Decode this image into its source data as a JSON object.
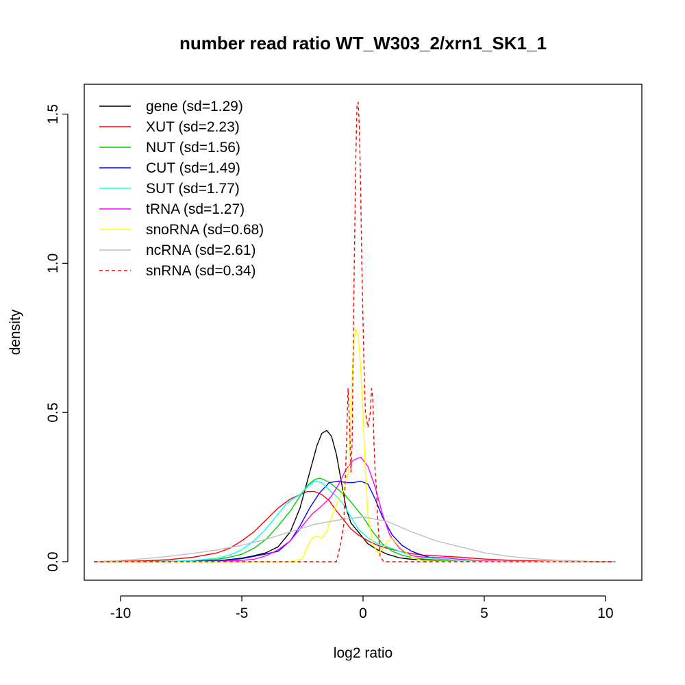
{
  "chart_data": {
    "type": "line",
    "title": "number read ratio WT_W303_2/xrn1_SK1_1",
    "xlabel": "log2 ratio",
    "ylabel": "density",
    "xlim": [
      -11.5,
      11.5
    ],
    "ylim": [
      -0.062,
      1.6
    ],
    "x_ticks": [
      -10,
      -5,
      0,
      5,
      10
    ],
    "x_tick_labels": [
      "-10",
      "-5",
      "0",
      "5",
      "10"
    ],
    "y_ticks": [
      0.0,
      0.5,
      1.0,
      1.5
    ],
    "y_tick_labels": [
      "0.0",
      "0.5",
      "1.0",
      "1.5"
    ],
    "grid": false,
    "legend_position": "top-left",
    "series": [
      {
        "name": "gene (sd=1.29)",
        "color": "#000000",
        "dashed": false,
        "x": [
          -11.1,
          -8,
          -6,
          -5,
          -4.5,
          -4,
          -3.5,
          -3,
          -2.6,
          -2.3,
          -2.1,
          -1.9,
          -1.7,
          -1.5,
          -1.3,
          -1.1,
          -0.9,
          -0.7,
          -0.5,
          -0.3,
          -0.1,
          0.2,
          0.6,
          1,
          1.5,
          2,
          3,
          4,
          6,
          8,
          10.4
        ],
        "y": [
          0,
          0.001,
          0.003,
          0.012,
          0.02,
          0.03,
          0.05,
          0.1,
          0.18,
          0.27,
          0.33,
          0.39,
          0.43,
          0.44,
          0.42,
          0.36,
          0.27,
          0.18,
          0.13,
          0.11,
          0.09,
          0.06,
          0.04,
          0.025,
          0.013,
          0.008,
          0.005,
          0.003,
          0.001,
          0.0005,
          0
        ]
      },
      {
        "name": "XUT (sd=2.23)",
        "color": "#ff0000",
        "dashed": false,
        "x": [
          -11.1,
          -9,
          -8,
          -7,
          -6,
          -5.5,
          -5,
          -4.5,
          -4,
          -3.5,
          -3,
          -2.6,
          -2.3,
          -2,
          -1.7,
          -1.4,
          -1.1,
          -0.8,
          -0.5,
          -0.2,
          0.2,
          0.6,
          1,
          1.5,
          2,
          2.5,
          3,
          4,
          5,
          6,
          7,
          8,
          10.4
        ],
        "y": [
          0,
          0.003,
          0.007,
          0.015,
          0.03,
          0.045,
          0.07,
          0.1,
          0.14,
          0.18,
          0.21,
          0.225,
          0.235,
          0.235,
          0.225,
          0.205,
          0.17,
          0.14,
          0.11,
          0.09,
          0.07,
          0.055,
          0.045,
          0.035,
          0.027,
          0.022,
          0.02,
          0.015,
          0.009,
          0.005,
          0.003,
          0.001,
          0
        ]
      },
      {
        "name": "NUT (sd=1.56)",
        "color": "#00cd00",
        "dashed": false,
        "x": [
          -11.1,
          -7,
          -6,
          -5.5,
          -5,
          -4.5,
          -4,
          -3.5,
          -3,
          -2.6,
          -2.3,
          -2,
          -1.8,
          -1.6,
          -1.3,
          -1,
          -0.7,
          -0.4,
          0,
          0.4,
          0.8,
          1.2,
          1.6,
          2,
          2.5,
          3,
          4,
          6,
          10.4
        ],
        "y": [
          0,
          0.002,
          0.008,
          0.015,
          0.025,
          0.045,
          0.075,
          0.12,
          0.17,
          0.22,
          0.255,
          0.275,
          0.28,
          0.275,
          0.26,
          0.24,
          0.22,
          0.19,
          0.15,
          0.1,
          0.06,
          0.035,
          0.022,
          0.014,
          0.009,
          0.006,
          0.003,
          0.001,
          0
        ]
      },
      {
        "name": "CUT (sd=1.49)",
        "color": "#0000ff",
        "dashed": false,
        "x": [
          -11.1,
          -6,
          -5,
          -4.5,
          -4,
          -3.5,
          -3,
          -2.6,
          -2.2,
          -1.8,
          -1.4,
          -1,
          -0.7,
          -0.4,
          -0.1,
          0.2,
          0.5,
          0.8,
          1.2,
          1.6,
          2,
          2.5,
          3,
          4,
          6,
          10.4
        ],
        "y": [
          0,
          0.002,
          0.01,
          0.018,
          0.026,
          0.035,
          0.07,
          0.12,
          0.18,
          0.23,
          0.265,
          0.27,
          0.265,
          0.265,
          0.27,
          0.26,
          0.21,
          0.15,
          0.09,
          0.055,
          0.035,
          0.02,
          0.01,
          0.003,
          0.001,
          0
        ]
      },
      {
        "name": "SUT (sd=1.77)",
        "color": "#00ffff",
        "dashed": false,
        "x": [
          -11.1,
          -8,
          -7,
          -6,
          -5.5,
          -5,
          -4.5,
          -4,
          -3.5,
          -3.2,
          -2.9,
          -2.6,
          -2.3,
          -2,
          -1.7,
          -1.4,
          -1.1,
          -0.8,
          -0.5,
          -0.2,
          0.2,
          0.6,
          1,
          1.5,
          2,
          3,
          4,
          6,
          10.4
        ],
        "y": [
          0,
          0.001,
          0.004,
          0.012,
          0.022,
          0.04,
          0.07,
          0.11,
          0.16,
          0.19,
          0.21,
          0.225,
          0.25,
          0.27,
          0.265,
          0.24,
          0.22,
          0.19,
          0.15,
          0.11,
          0.08,
          0.06,
          0.05,
          0.035,
          0.02,
          0.01,
          0.004,
          0.001,
          0
        ]
      },
      {
        "name": "tRNA (sd=1.27)",
        "color": "#ff00ff",
        "dashed": false,
        "x": [
          -11.1,
          -6,
          -5,
          -4.5,
          -4,
          -3.5,
          -3,
          -2.7,
          -2.4,
          -2.1,
          -1.8,
          -1.6,
          -1.3,
          -1,
          -0.7,
          -0.4,
          -0.1,
          0.2,
          0.5,
          0.8,
          1.1,
          1.5,
          2,
          2.5,
          3,
          3.5,
          4,
          5,
          7,
          10.4
        ],
        "y": [
          0,
          0.001,
          0.004,
          0.008,
          0.02,
          0.04,
          0.07,
          0.1,
          0.13,
          0.16,
          0.18,
          0.195,
          0.22,
          0.26,
          0.31,
          0.34,
          0.35,
          0.32,
          0.25,
          0.16,
          0.09,
          0.045,
          0.02,
          0.015,
          0.015,
          0.012,
          0.008,
          0.003,
          0.001,
          0
        ]
      },
      {
        "name": "snoRNA (sd=0.68)",
        "color": "#ffff00",
        "dashed": false,
        "x": [
          -11.1,
          -3,
          -2.5,
          -2.3,
          -2.1,
          -1.9,
          -1.7,
          -1.5,
          -1.2,
          -1,
          -0.8,
          -0.6,
          -0.5,
          -0.4,
          -0.3,
          -0.2,
          -0.1,
          0,
          0.1,
          0.2,
          0.4,
          0.6,
          0.8,
          1,
          1.2,
          1.5,
          2,
          2.5,
          10.4
        ],
        "y": [
          0,
          0,
          0.01,
          0.05,
          0.08,
          0.085,
          0.08,
          0.1,
          0.17,
          0.21,
          0.24,
          0.3,
          0.5,
          0.72,
          0.78,
          0.76,
          0.65,
          0.5,
          0.3,
          0.16,
          0.06,
          0.03,
          0.04,
          0.07,
          0.08,
          0.05,
          0.015,
          0.002,
          0
        ]
      },
      {
        "name": "ncRNA (sd=2.61)",
        "color": "#bebebe",
        "dashed": false,
        "x": [
          -11.1,
          -10,
          -9,
          -8,
          -7,
          -6,
          -5,
          -4,
          -3,
          -2,
          -1,
          0,
          1,
          2,
          3,
          4,
          5,
          6,
          7,
          8,
          9,
          10.4
        ],
        "y": [
          0,
          0.004,
          0.01,
          0.018,
          0.028,
          0.04,
          0.055,
          0.075,
          0.1,
          0.125,
          0.14,
          0.15,
          0.135,
          0.1,
          0.07,
          0.05,
          0.03,
          0.018,
          0.01,
          0.005,
          0.002,
          0
        ]
      },
      {
        "name": "snRNA (sd=0.34)",
        "color": "#ff0000",
        "dashed": true,
        "x": [
          -11.1,
          -1.1,
          -0.95,
          -0.8,
          -0.7,
          -0.62,
          -0.55,
          -0.5,
          -0.45,
          -0.38,
          -0.3,
          -0.25,
          -0.2,
          -0.15,
          -0.1,
          -0.05,
          0,
          0.05,
          0.1,
          0.2,
          0.3,
          0.35,
          0.4,
          0.45,
          0.5,
          0.55,
          0.6,
          0.7,
          0.85,
          10.4
        ],
        "y": [
          0,
          0,
          0.05,
          0.12,
          0.35,
          0.58,
          0.45,
          0.3,
          0.4,
          0.9,
          1.35,
          1.53,
          1.54,
          1.45,
          1.25,
          1.0,
          0.8,
          0.62,
          0.5,
          0.45,
          0.5,
          0.58,
          0.55,
          0.4,
          0.3,
          0.25,
          0.15,
          0.02,
          0,
          0
        ]
      }
    ]
  }
}
